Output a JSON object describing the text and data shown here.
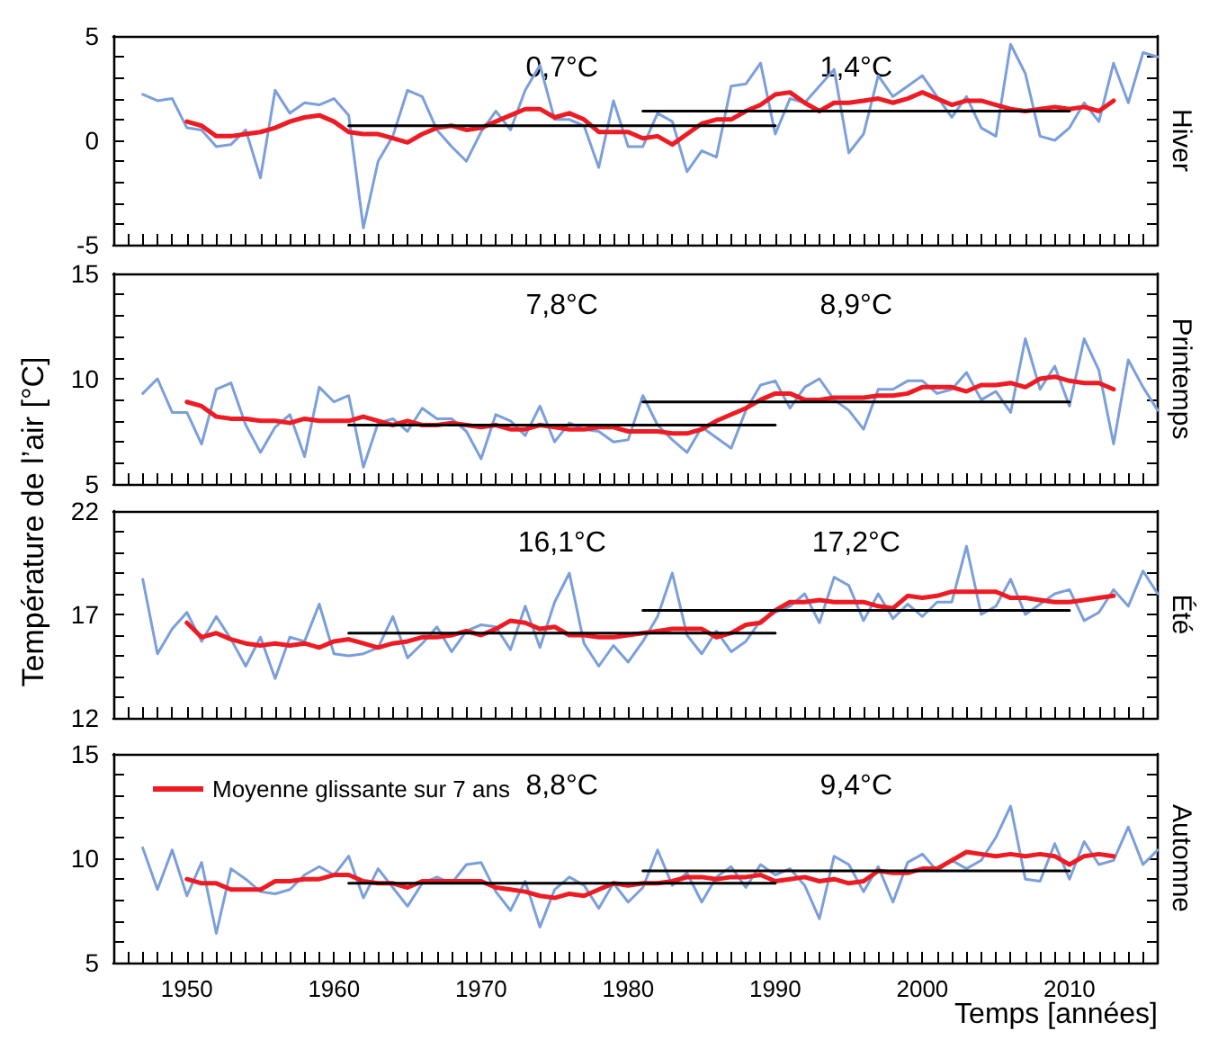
{
  "chart_data": [
    {
      "type": "line",
      "title": "Hiver",
      "tick_labels": "y",
      "marker": "none",
      "line_style": "solid",
      "xlim": [
        1945,
        2016
      ],
      "ylim": [
        -5,
        5
      ],
      "yticks": [
        -5,
        {
          "value": -4,
          "label": null
        },
        {
          "value": -3,
          "label": null
        },
        {
          "value": -2,
          "label": null
        },
        {
          "value": -1,
          "label": null
        },
        0,
        {
          "value": 1,
          "label": null
        },
        {
          "value": 2,
          "label": null
        },
        {
          "value": 3,
          "label": null
        },
        {
          "value": 4,
          "label": null
        },
        5
      ],
      "xticks": [
        {
          "value": 1946,
          "label": null
        },
        {
          "value": 1947,
          "label": null
        },
        {
          "value": 1948,
          "label": null
        },
        {
          "value": 1949,
          "label": null
        },
        1950,
        {
          "value": 1951,
          "label": null
        },
        {
          "value": 1952,
          "label": null
        },
        {
          "value": 1953,
          "label": null
        },
        {
          "value": 1954,
          "label": null
        },
        {
          "value": 1955,
          "label": null
        },
        {
          "value": 1956,
          "label": null
        },
        {
          "value": 1957,
          "label": null
        },
        {
          "value": 1958,
          "label": null
        },
        {
          "value": 1959,
          "label": null
        },
        1960,
        {
          "value": 1961,
          "label": null
        },
        {
          "value": 1962,
          "label": null
        },
        {
          "value": 1963,
          "label": null
        },
        {
          "value": 1964,
          "label": null
        },
        {
          "value": 1965,
          "label": null
        },
        {
          "value": 1966,
          "label": null
        },
        {
          "value": 1967,
          "label": null
        },
        {
          "value": 1968,
          "label": null
        },
        {
          "value": 1969,
          "label": null
        },
        1970,
        {
          "value": 1971,
          "label": null
        },
        {
          "value": 1972,
          "label": null
        },
        {
          "value": 1973,
          "label": null
        },
        {
          "value": 1974,
          "label": null
        },
        {
          "value": 1975,
          "label": null
        },
        {
          "value": 1976,
          "label": null
        },
        {
          "value": 1977,
          "label": null
        },
        {
          "value": 1978,
          "label": null
        },
        {
          "value": 1979,
          "label": null
        },
        1980,
        {
          "value": 1981,
          "label": null
        },
        {
          "value": 1982,
          "label": null
        },
        {
          "value": 1983,
          "label": null
        },
        {
          "value": 1984,
          "label": null
        },
        {
          "value": 1985,
          "label": null
        },
        {
          "value": 1986,
          "label": null
        },
        {
          "value": 1987,
          "label": null
        },
        {
          "value": 1988,
          "label": null
        },
        {
          "value": 1989,
          "label": null
        },
        1990,
        {
          "value": 1991,
          "label": null
        },
        {
          "value": 1992,
          "label": null
        },
        {
          "value": 1993,
          "label": null
        },
        {
          "value": 1994,
          "label": null
        },
        {
          "value": 1995,
          "label": null
        },
        {
          "value": 1996,
          "label": null
        },
        {
          "value": 1997,
          "label": null
        },
        {
          "value": 1998,
          "label": null
        },
        {
          "value": 1999,
          "label": null
        },
        2000,
        {
          "value": 2001,
          "label": null
        },
        {
          "value": 2002,
          "label": null
        },
        {
          "value": 2003,
          "label": null
        },
        {
          "value": 2004,
          "label": null
        },
        {
          "value": 2005,
          "label": null
        },
        {
          "value": 2006,
          "label": null
        },
        {
          "value": 2007,
          "label": null
        },
        {
          "value": 2008,
          "label": null
        },
        {
          "value": 2009,
          "label": null
        },
        2010,
        {
          "value": 2011,
          "label": null
        },
        {
          "value": 2012,
          "label": null
        },
        {
          "value": 2013,
          "label": null
        },
        {
          "value": 2014,
          "label": null
        },
        {
          "value": 2015,
          "label": null
        },
        {
          "value": 2016,
          "label": null
        }
      ],
      "x": [
        1947,
        1948,
        1949,
        1950,
        1951,
        1952,
        1953,
        1954,
        1955,
        1956,
        1957,
        1958,
        1959,
        1960,
        1961,
        1962,
        1963,
        1964,
        1965,
        1966,
        1967,
        1968,
        1969,
        1970,
        1971,
        1972,
        1973,
        1974,
        1975,
        1976,
        1977,
        1978,
        1979,
        1980,
        1981,
        1982,
        1983,
        1984,
        1985,
        1986,
        1987,
        1988,
        1989,
        1990,
        1991,
        1992,
        1993,
        1994,
        1995,
        1996,
        1997,
        1998,
        1999,
        2000,
        2001,
        2002,
        2003,
        2004,
        2005,
        2006,
        2007,
        2008,
        2009,
        2010,
        2011,
        2012,
        2013,
        2014,
        2015,
        2016
      ],
      "series": [
        {
          "color": "#7b9fdb",
          "values": [
            2.2,
            1.9,
            2.0,
            0.6,
            0.5,
            -0.3,
            -0.2,
            0.5,
            -1.8,
            2.4,
            1.3,
            1.8,
            1.7,
            2.0,
            1.2,
            -4.2,
            -1.0,
            0.2,
            2.4,
            2.1,
            0.5,
            -0.3,
            -1.0,
            0.4,
            1.4,
            0.5,
            2.4,
            3.6,
            1.0,
            1.0,
            0.7,
            -1.3,
            1.9,
            -0.3,
            -0.3,
            1.3,
            0.9,
            -1.5,
            -0.5,
            -0.8,
            2.6,
            2.7,
            3.7,
            0.3,
            2.0,
            1.8,
            2.6,
            3.4,
            -0.6,
            0.3,
            3.1,
            2.1,
            2.6,
            3.1,
            2.1,
            1.1,
            2.1,
            0.6,
            0.2,
            4.6,
            3.2,
            0.2,
            0.0,
            0.6,
            1.8,
            0.9,
            3.7,
            1.8,
            4.2,
            4.0
          ]
        },
        {
          "color": "#ed1c24",
          "values": [
            null,
            null,
            null,
            0.9,
            0.7,
            0.2,
            0.2,
            0.3,
            0.4,
            0.6,
            0.9,
            1.1,
            1.2,
            0.9,
            0.4,
            0.3,
            0.3,
            0.1,
            -0.1,
            0.3,
            0.6,
            0.7,
            0.5,
            0.6,
            0.9,
            1.2,
            1.5,
            1.5,
            1.1,
            1.3,
            1.0,
            0.4,
            0.4,
            0.4,
            0.1,
            0.2,
            -0.2,
            0.3,
            0.8,
            1.0,
            1.0,
            1.4,
            1.7,
            2.2,
            2.3,
            1.8,
            1.4,
            1.8,
            1.8,
            1.9,
            2.0,
            1.8,
            2.0,
            2.3,
            2.0,
            1.7,
            1.9,
            1.9,
            1.7,
            1.5,
            1.4,
            1.5,
            1.6,
            1.5,
            1.6,
            1.4,
            1.9,
            null,
            null,
            null
          ]
        },
        {
          "color": "#000000",
          "x": [
            1961,
            1990
          ],
          "values": [
            0.7,
            0.7
          ]
        },
        {
          "color": "#000000",
          "x": [
            1981,
            2010
          ],
          "values": [
            1.4,
            1.4
          ]
        }
      ],
      "annotations": [
        "0,7°C",
        "1,4°C"
      ]
    },
    {
      "type": "line",
      "title": "Printemps",
      "ylabel": "Température de l’air [°C]",
      "tick_labels": "y",
      "marker": "none",
      "line_style": "solid",
      "xlim": [
        1945,
        2016
      ],
      "ylim": [
        5,
        15
      ],
      "yticks": [
        5,
        {
          "value": 6,
          "label": null
        },
        {
          "value": 7,
          "label": null
        },
        {
          "value": 8,
          "label": null
        },
        {
          "value": 9,
          "label": null
        },
        10,
        {
          "value": 11,
          "label": null
        },
        {
          "value": 12,
          "label": null
        },
        {
          "value": 13,
          "label": null
        },
        {
          "value": 14,
          "label": null
        },
        15
      ],
      "xticks": [
        {
          "value": 1946,
          "label": null
        },
        {
          "value": 1947,
          "label": null
        },
        {
          "value": 1948,
          "label": null
        },
        {
          "value": 1949,
          "label": null
        },
        1950,
        {
          "value": 1951,
          "label": null
        },
        {
          "value": 1952,
          "label": null
        },
        {
          "value": 1953,
          "label": null
        },
        {
          "value": 1954,
          "label": null
        },
        {
          "value": 1955,
          "label": null
        },
        {
          "value": 1956,
          "label": null
        },
        {
          "value": 1957,
          "label": null
        },
        {
          "value": 1958,
          "label": null
        },
        {
          "value": 1959,
          "label": null
        },
        1960,
        {
          "value": 1961,
          "label": null
        },
        {
          "value": 1962,
          "label": null
        },
        {
          "value": 1963,
          "label": null
        },
        {
          "value": 1964,
          "label": null
        },
        {
          "value": 1965,
          "label": null
        },
        {
          "value": 1966,
          "label": null
        },
        {
          "value": 1967,
          "label": null
        },
        {
          "value": 1968,
          "label": null
        },
        {
          "value": 1969,
          "label": null
        },
        1970,
        {
          "value": 1971,
          "label": null
        },
        {
          "value": 1972,
          "label": null
        },
        {
          "value": 1973,
          "label": null
        },
        {
          "value": 1974,
          "label": null
        },
        {
          "value": 1975,
          "label": null
        },
        {
          "value": 1976,
          "label": null
        },
        {
          "value": 1977,
          "label": null
        },
        {
          "value": 1978,
          "label": null
        },
        {
          "value": 1979,
          "label": null
        },
        1980,
        {
          "value": 1981,
          "label": null
        },
        {
          "value": 1982,
          "label": null
        },
        {
          "value": 1983,
          "label": null
        },
        {
          "value": 1984,
          "label": null
        },
        {
          "value": 1985,
          "label": null
        },
        {
          "value": 1986,
          "label": null
        },
        {
          "value": 1987,
          "label": null
        },
        {
          "value": 1988,
          "label": null
        },
        {
          "value": 1989,
          "label": null
        },
        1990,
        {
          "value": 1991,
          "label": null
        },
        {
          "value": 1992,
          "label": null
        },
        {
          "value": 1993,
          "label": null
        },
        {
          "value": 1994,
          "label": null
        },
        {
          "value": 1995,
          "label": null
        },
        {
          "value": 1996,
          "label": null
        },
        {
          "value": 1997,
          "label": null
        },
        {
          "value": 1998,
          "label": null
        },
        {
          "value": 1999,
          "label": null
        },
        2000,
        {
          "value": 2001,
          "label": null
        },
        {
          "value": 2002,
          "label": null
        },
        {
          "value": 2003,
          "label": null
        },
        {
          "value": 2004,
          "label": null
        },
        {
          "value": 2005,
          "label": null
        },
        {
          "value": 2006,
          "label": null
        },
        {
          "value": 2007,
          "label": null
        },
        {
          "value": 2008,
          "label": null
        },
        {
          "value": 2009,
          "label": null
        },
        2010,
        {
          "value": 2011,
          "label": null
        },
        {
          "value": 2012,
          "label": null
        },
        {
          "value": 2013,
          "label": null
        },
        {
          "value": 2014,
          "label": null
        },
        {
          "value": 2015,
          "label": null
        },
        {
          "value": 2016,
          "label": null
        }
      ],
      "x": [
        1947,
        1948,
        1949,
        1950,
        1951,
        1952,
        1953,
        1954,
        1955,
        1956,
        1957,
        1958,
        1959,
        1960,
        1961,
        1962,
        1963,
        1964,
        1965,
        1966,
        1967,
        1968,
        1969,
        1970,
        1971,
        1972,
        1973,
        1974,
        1975,
        1976,
        1977,
        1978,
        1979,
        1980,
        1981,
        1982,
        1983,
        1984,
        1985,
        1986,
        1987,
        1988,
        1989,
        1990,
        1991,
        1992,
        1993,
        1994,
        1995,
        1996,
        1997,
        1998,
        1999,
        2000,
        2001,
        2002,
        2003,
        2004,
        2005,
        2006,
        2007,
        2008,
        2009,
        2010,
        2011,
        2012,
        2013,
        2014,
        2015,
        2016
      ],
      "series": [
        {
          "color": "#7b9fdb",
          "values": [
            9.3,
            10.0,
            8.4,
            8.4,
            6.9,
            9.5,
            9.8,
            7.8,
            6.5,
            7.7,
            8.3,
            6.3,
            9.6,
            8.9,
            9.2,
            5.8,
            7.9,
            8.1,
            7.5,
            8.6,
            8.1,
            8.1,
            7.5,
            6.2,
            8.3,
            8.0,
            7.3,
            8.7,
            7.0,
            7.9,
            7.6,
            7.5,
            7.0,
            7.1,
            9.2,
            7.8,
            7.1,
            6.5,
            7.7,
            7.2,
            6.7,
            8.5,
            9.7,
            9.9,
            8.6,
            9.6,
            10.0,
            9.0,
            8.5,
            7.6,
            9.5,
            9.5,
            9.9,
            9.9,
            9.3,
            9.5,
            10.3,
            9.0,
            9.4,
            8.4,
            11.9,
            9.5,
            10.6,
            8.7,
            11.9,
            10.4,
            6.9,
            10.9,
            9.6,
            8.5
          ]
        },
        {
          "color": "#ed1c24",
          "values": [
            null,
            null,
            null,
            8.9,
            8.7,
            8.2,
            8.1,
            8.1,
            8.0,
            8.0,
            7.9,
            8.1,
            8.0,
            8.0,
            8.0,
            8.2,
            8.0,
            7.8,
            8.0,
            7.8,
            7.8,
            7.9,
            7.8,
            7.7,
            7.8,
            7.6,
            7.6,
            7.8,
            7.7,
            7.6,
            7.6,
            7.7,
            7.7,
            7.5,
            7.5,
            7.5,
            7.4,
            7.4,
            7.6,
            8.0,
            8.3,
            8.6,
            9.0,
            9.3,
            9.3,
            9.0,
            9.0,
            9.1,
            9.1,
            9.1,
            9.2,
            9.2,
            9.3,
            9.6,
            9.6,
            9.6,
            9.4,
            9.7,
            9.7,
            9.8,
            9.6,
            10.0,
            10.1,
            9.9,
            9.8,
            9.8,
            9.5,
            null,
            null,
            null
          ]
        },
        {
          "color": "#000000",
          "x": [
            1961,
            1990
          ],
          "values": [
            7.8,
            7.8
          ]
        },
        {
          "color": "#000000",
          "x": [
            1981,
            2010
          ],
          "values": [
            8.9,
            8.9
          ]
        }
      ],
      "annotations": [
        "7,8°C",
        "8,9°C"
      ]
    },
    {
      "type": "line",
      "title": "Été",
      "tick_labels": "y",
      "marker": "none",
      "line_style": "solid",
      "xlim": [
        1945,
        2016
      ],
      "ylim": [
        12,
        22
      ],
      "yticks": [
        12,
        {
          "value": 13,
          "label": null
        },
        {
          "value": 14,
          "label": null
        },
        {
          "value": 15,
          "label": null
        },
        {
          "value": 16,
          "label": null
        },
        17,
        {
          "value": 18,
          "label": null
        },
        {
          "value": 19,
          "label": null
        },
        {
          "value": 20,
          "label": null
        },
        {
          "value": 21,
          "label": null
        },
        22
      ],
      "xticks": [
        {
          "value": 1946,
          "label": null
        },
        {
          "value": 1947,
          "label": null
        },
        {
          "value": 1948,
          "label": null
        },
        {
          "value": 1949,
          "label": null
        },
        1950,
        {
          "value": 1951,
          "label": null
        },
        {
          "value": 1952,
          "label": null
        },
        {
          "value": 1953,
          "label": null
        },
        {
          "value": 1954,
          "label": null
        },
        {
          "value": 1955,
          "label": null
        },
        {
          "value": 1956,
          "label": null
        },
        {
          "value": 1957,
          "label": null
        },
        {
          "value": 1958,
          "label": null
        },
        {
          "value": 1959,
          "label": null
        },
        1960,
        {
          "value": 1961,
          "label": null
        },
        {
          "value": 1962,
          "label": null
        },
        {
          "value": 1963,
          "label": null
        },
        {
          "value": 1964,
          "label": null
        },
        {
          "value": 1965,
          "label": null
        },
        {
          "value": 1966,
          "label": null
        },
        {
          "value": 1967,
          "label": null
        },
        {
          "value": 1968,
          "label": null
        },
        {
          "value": 1969,
          "label": null
        },
        1970,
        {
          "value": 1971,
          "label": null
        },
        {
          "value": 1972,
          "label": null
        },
        {
          "value": 1973,
          "label": null
        },
        {
          "value": 1974,
          "label": null
        },
        {
          "value": 1975,
          "label": null
        },
        {
          "value": 1976,
          "label": null
        },
        {
          "value": 1977,
          "label": null
        },
        {
          "value": 1978,
          "label": null
        },
        {
          "value": 1979,
          "label": null
        },
        1980,
        {
          "value": 1981,
          "label": null
        },
        {
          "value": 1982,
          "label": null
        },
        {
          "value": 1983,
          "label": null
        },
        {
          "value": 1984,
          "label": null
        },
        {
          "value": 1985,
          "label": null
        },
        {
          "value": 1986,
          "label": null
        },
        {
          "value": 1987,
          "label": null
        },
        {
          "value": 1988,
          "label": null
        },
        {
          "value": 1989,
          "label": null
        },
        1990,
        {
          "value": 1991,
          "label": null
        },
        {
          "value": 1992,
          "label": null
        },
        {
          "value": 1993,
          "label": null
        },
        {
          "value": 1994,
          "label": null
        },
        {
          "value": 1995,
          "label": null
        },
        {
          "value": 1996,
          "label": null
        },
        {
          "value": 1997,
          "label": null
        },
        {
          "value": 1998,
          "label": null
        },
        {
          "value": 1999,
          "label": null
        },
        2000,
        {
          "value": 2001,
          "label": null
        },
        {
          "value": 2002,
          "label": null
        },
        {
          "value": 2003,
          "label": null
        },
        {
          "value": 2004,
          "label": null
        },
        {
          "value": 2005,
          "label": null
        },
        {
          "value": 2006,
          "label": null
        },
        {
          "value": 2007,
          "label": null
        },
        {
          "value": 2008,
          "label": null
        },
        {
          "value": 2009,
          "label": null
        },
        2010,
        {
          "value": 2011,
          "label": null
        },
        {
          "value": 2012,
          "label": null
        },
        {
          "value": 2013,
          "label": null
        },
        {
          "value": 2014,
          "label": null
        },
        {
          "value": 2015,
          "label": null
        },
        {
          "value": 2016,
          "label": null
        }
      ],
      "x": [
        1947,
        1948,
        1949,
        1950,
        1951,
        1952,
        1953,
        1954,
        1955,
        1956,
        1957,
        1958,
        1959,
        1960,
        1961,
        1962,
        1963,
        1964,
        1965,
        1966,
        1967,
        1968,
        1969,
        1970,
        1971,
        1972,
        1973,
        1974,
        1975,
        1976,
        1977,
        1978,
        1979,
        1980,
        1981,
        1982,
        1983,
        1984,
        1985,
        1986,
        1987,
        1988,
        1989,
        1990,
        1991,
        1992,
        1993,
        1994,
        1995,
        1996,
        1997,
        1998,
        1999,
        2000,
        2001,
        2002,
        2003,
        2004,
        2005,
        2006,
        2007,
        2008,
        2009,
        2010,
        2011,
        2012,
        2013,
        2014,
        2015,
        2016
      ],
      "series": [
        {
          "color": "#7b9fdb",
          "values": [
            18.7,
            15.1,
            16.3,
            17.1,
            15.7,
            16.9,
            15.8,
            14.5,
            15.9,
            13.9,
            15.9,
            15.7,
            17.5,
            15.1,
            15.0,
            15.1,
            15.4,
            16.9,
            14.9,
            15.6,
            16.4,
            15.2,
            16.2,
            16.5,
            16.4,
            15.3,
            17.4,
            15.4,
            17.6,
            19.0,
            15.6,
            14.5,
            15.5,
            14.7,
            15.7,
            16.9,
            19.0,
            16.0,
            15.1,
            16.2,
            15.2,
            15.7,
            16.7,
            17.1,
            17.4,
            18.0,
            16.6,
            18.8,
            18.4,
            16.7,
            18.0,
            16.8,
            17.5,
            16.9,
            17.6,
            17.6,
            20.3,
            17.0,
            17.4,
            18.7,
            17.0,
            17.5,
            18.0,
            18.2,
            16.7,
            17.1,
            18.2,
            17.4,
            19.1,
            18.0
          ]
        },
        {
          "color": "#ed1c24",
          "values": [
            null,
            null,
            null,
            16.6,
            15.9,
            16.1,
            15.8,
            15.6,
            15.5,
            15.6,
            15.5,
            15.6,
            15.4,
            15.7,
            15.8,
            15.6,
            15.4,
            15.6,
            15.7,
            15.9,
            15.9,
            16.0,
            16.2,
            16.0,
            16.3,
            16.7,
            16.6,
            16.3,
            16.4,
            16.0,
            16.0,
            15.9,
            15.9,
            16.0,
            16.1,
            16.2,
            16.3,
            16.3,
            16.3,
            15.9,
            16.1,
            16.5,
            16.6,
            17.2,
            17.6,
            17.6,
            17.7,
            17.6,
            17.6,
            17.6,
            17.4,
            17.3,
            17.9,
            17.8,
            17.9,
            18.1,
            18.1,
            18.1,
            18.1,
            17.8,
            17.8,
            17.7,
            17.6,
            17.6,
            17.7,
            17.8,
            17.9,
            null,
            null,
            null
          ]
        },
        {
          "color": "#000000",
          "x": [
            1961,
            1990
          ],
          "values": [
            16.1,
            16.1
          ]
        },
        {
          "color": "#000000",
          "x": [
            1981,
            2010
          ],
          "values": [
            17.2,
            17.2
          ]
        }
      ],
      "annotations": [
        "16,1°C",
        "17,2°C"
      ]
    },
    {
      "type": "line",
      "title": "Automne",
      "xlabel": "Temps [années]",
      "legend": "top left",
      "marker": "none",
      "line_style": "solid",
      "xlim": [
        1945,
        2016
      ],
      "ylim": [
        5,
        15
      ],
      "yticks": [
        5,
        {
          "value": 6,
          "label": null
        },
        {
          "value": 7,
          "label": null
        },
        {
          "value": 8,
          "label": null
        },
        {
          "value": 9,
          "label": null
        },
        10,
        {
          "value": 11,
          "label": null
        },
        {
          "value": 12,
          "label": null
        },
        {
          "value": 13,
          "label": null
        },
        {
          "value": 14,
          "label": null
        },
        15
      ],
      "xticks": [
        {
          "value": 1946,
          "label": null
        },
        {
          "value": 1947,
          "label": null
        },
        {
          "value": 1948,
          "label": null
        },
        {
          "value": 1949,
          "label": null
        },
        1950,
        {
          "value": 1951,
          "label": null
        },
        {
          "value": 1952,
          "label": null
        },
        {
          "value": 1953,
          "label": null
        },
        {
          "value": 1954,
          "label": null
        },
        {
          "value": 1955,
          "label": null
        },
        {
          "value": 1956,
          "label": null
        },
        {
          "value": 1957,
          "label": null
        },
        {
          "value": 1958,
          "label": null
        },
        {
          "value": 1959,
          "label": null
        },
        1960,
        {
          "value": 1961,
          "label": null
        },
        {
          "value": 1962,
          "label": null
        },
        {
          "value": 1963,
          "label": null
        },
        {
          "value": 1964,
          "label": null
        },
        {
          "value": 1965,
          "label": null
        },
        {
          "value": 1966,
          "label": null
        },
        {
          "value": 1967,
          "label": null
        },
        {
          "value": 1968,
          "label": null
        },
        {
          "value": 1969,
          "label": null
        },
        1970,
        {
          "value": 1971,
          "label": null
        },
        {
          "value": 1972,
          "label": null
        },
        {
          "value": 1973,
          "label": null
        },
        {
          "value": 1974,
          "label": null
        },
        {
          "value": 1975,
          "label": null
        },
        {
          "value": 1976,
          "label": null
        },
        {
          "value": 1977,
          "label": null
        },
        {
          "value": 1978,
          "label": null
        },
        {
          "value": 1979,
          "label": null
        },
        1980,
        {
          "value": 1981,
          "label": null
        },
        {
          "value": 1982,
          "label": null
        },
        {
          "value": 1983,
          "label": null
        },
        {
          "value": 1984,
          "label": null
        },
        {
          "value": 1985,
          "label": null
        },
        {
          "value": 1986,
          "label": null
        },
        {
          "value": 1987,
          "label": null
        },
        {
          "value": 1988,
          "label": null
        },
        {
          "value": 1989,
          "label": null
        },
        1990,
        {
          "value": 1991,
          "label": null
        },
        {
          "value": 1992,
          "label": null
        },
        {
          "value": 1993,
          "label": null
        },
        {
          "value": 1994,
          "label": null
        },
        {
          "value": 1995,
          "label": null
        },
        {
          "value": 1996,
          "label": null
        },
        {
          "value": 1997,
          "label": null
        },
        {
          "value": 1998,
          "label": null
        },
        {
          "value": 1999,
          "label": null
        },
        2000,
        {
          "value": 2001,
          "label": null
        },
        {
          "value": 2002,
          "label": null
        },
        {
          "value": 2003,
          "label": null
        },
        {
          "value": 2004,
          "label": null
        },
        {
          "value": 2005,
          "label": null
        },
        {
          "value": 2006,
          "label": null
        },
        {
          "value": 2007,
          "label": null
        },
        {
          "value": 2008,
          "label": null
        },
        {
          "value": 2009,
          "label": null
        },
        2010,
        {
          "value": 2011,
          "label": null
        },
        {
          "value": 2012,
          "label": null
        },
        {
          "value": 2013,
          "label": null
        },
        {
          "value": 2014,
          "label": null
        },
        {
          "value": 2015,
          "label": null
        },
        {
          "value": 2016,
          "label": null
        }
      ],
      "x": [
        1947,
        1948,
        1949,
        1950,
        1951,
        1952,
        1953,
        1954,
        1955,
        1956,
        1957,
        1958,
        1959,
        1960,
        1961,
        1962,
        1963,
        1964,
        1965,
        1966,
        1967,
        1968,
        1969,
        1970,
        1971,
        1972,
        1973,
        1974,
        1975,
        1976,
        1977,
        1978,
        1979,
        1980,
        1981,
        1982,
        1983,
        1984,
        1985,
        1986,
        1987,
        1988,
        1989,
        1990,
        1991,
        1992,
        1993,
        1994,
        1995,
        1996,
        1997,
        1998,
        1999,
        2000,
        2001,
        2002,
        2003,
        2004,
        2005,
        2006,
        2007,
        2008,
        2009,
        2010,
        2011,
        2012,
        2013,
        2014,
        2015,
        2016
      ],
      "series": [
        {
          "color": "#7b9fdb",
          "values": [
            10.5,
            8.5,
            10.4,
            8.2,
            9.8,
            6.4,
            9.5,
            9.0,
            8.4,
            8.3,
            8.5,
            9.2,
            9.6,
            9.2,
            10.1,
            8.1,
            9.5,
            8.6,
            7.7,
            8.8,
            9.1,
            8.8,
            9.7,
            9.8,
            8.4,
            7.5,
            8.9,
            6.7,
            8.5,
            9.1,
            8.7,
            7.6,
            8.8,
            7.9,
            8.6,
            10.4,
            8.7,
            9.3,
            7.9,
            9.1,
            9.6,
            8.6,
            9.7,
            9.2,
            9.5,
            8.7,
            7.1,
            10.1,
            9.7,
            8.4,
            9.6,
            7.9,
            9.8,
            10.2,
            9.4,
            9.9,
            9.5,
            9.9,
            11.0,
            12.5,
            9.0,
            8.9,
            10.7,
            9.0,
            10.8,
            9.7,
            9.9,
            11.5,
            9.7,
            10.4
          ]
        },
        {
          "name": "Moyenne glissante sur 7 ans",
          "color": "#ed1c24",
          "values": [
            null,
            null,
            null,
            9.0,
            8.8,
            8.8,
            8.5,
            8.5,
            8.5,
            8.9,
            8.9,
            9.0,
            9.0,
            9.2,
            9.2,
            8.9,
            8.8,
            8.8,
            8.6,
            8.9,
            8.9,
            8.9,
            8.9,
            8.9,
            8.6,
            8.5,
            8.4,
            8.2,
            8.1,
            8.3,
            8.2,
            8.5,
            8.8,
            8.7,
            8.8,
            8.8,
            8.9,
            9.1,
            9.1,
            9.0,
            9.1,
            9.1,
            9.2,
            8.9,
            9.0,
            9.1,
            8.9,
            9.0,
            8.8,
            8.9,
            9.4,
            9.3,
            9.3,
            9.5,
            9.5,
            9.9,
            10.3,
            10.2,
            10.1,
            10.2,
            10.1,
            10.2,
            10.1,
            9.7,
            10.1,
            10.2,
            10.1,
            null,
            null,
            null
          ]
        },
        {
          "color": "#000000",
          "x": [
            1961,
            1990
          ],
          "values": [
            8.8,
            8.8
          ]
        },
        {
          "color": "#000000",
          "x": [
            1981,
            2010
          ],
          "values": [
            9.4,
            9.4
          ]
        }
      ],
      "annotations": [
        "8,8°C",
        "9,4°C"
      ]
    }
  ]
}
